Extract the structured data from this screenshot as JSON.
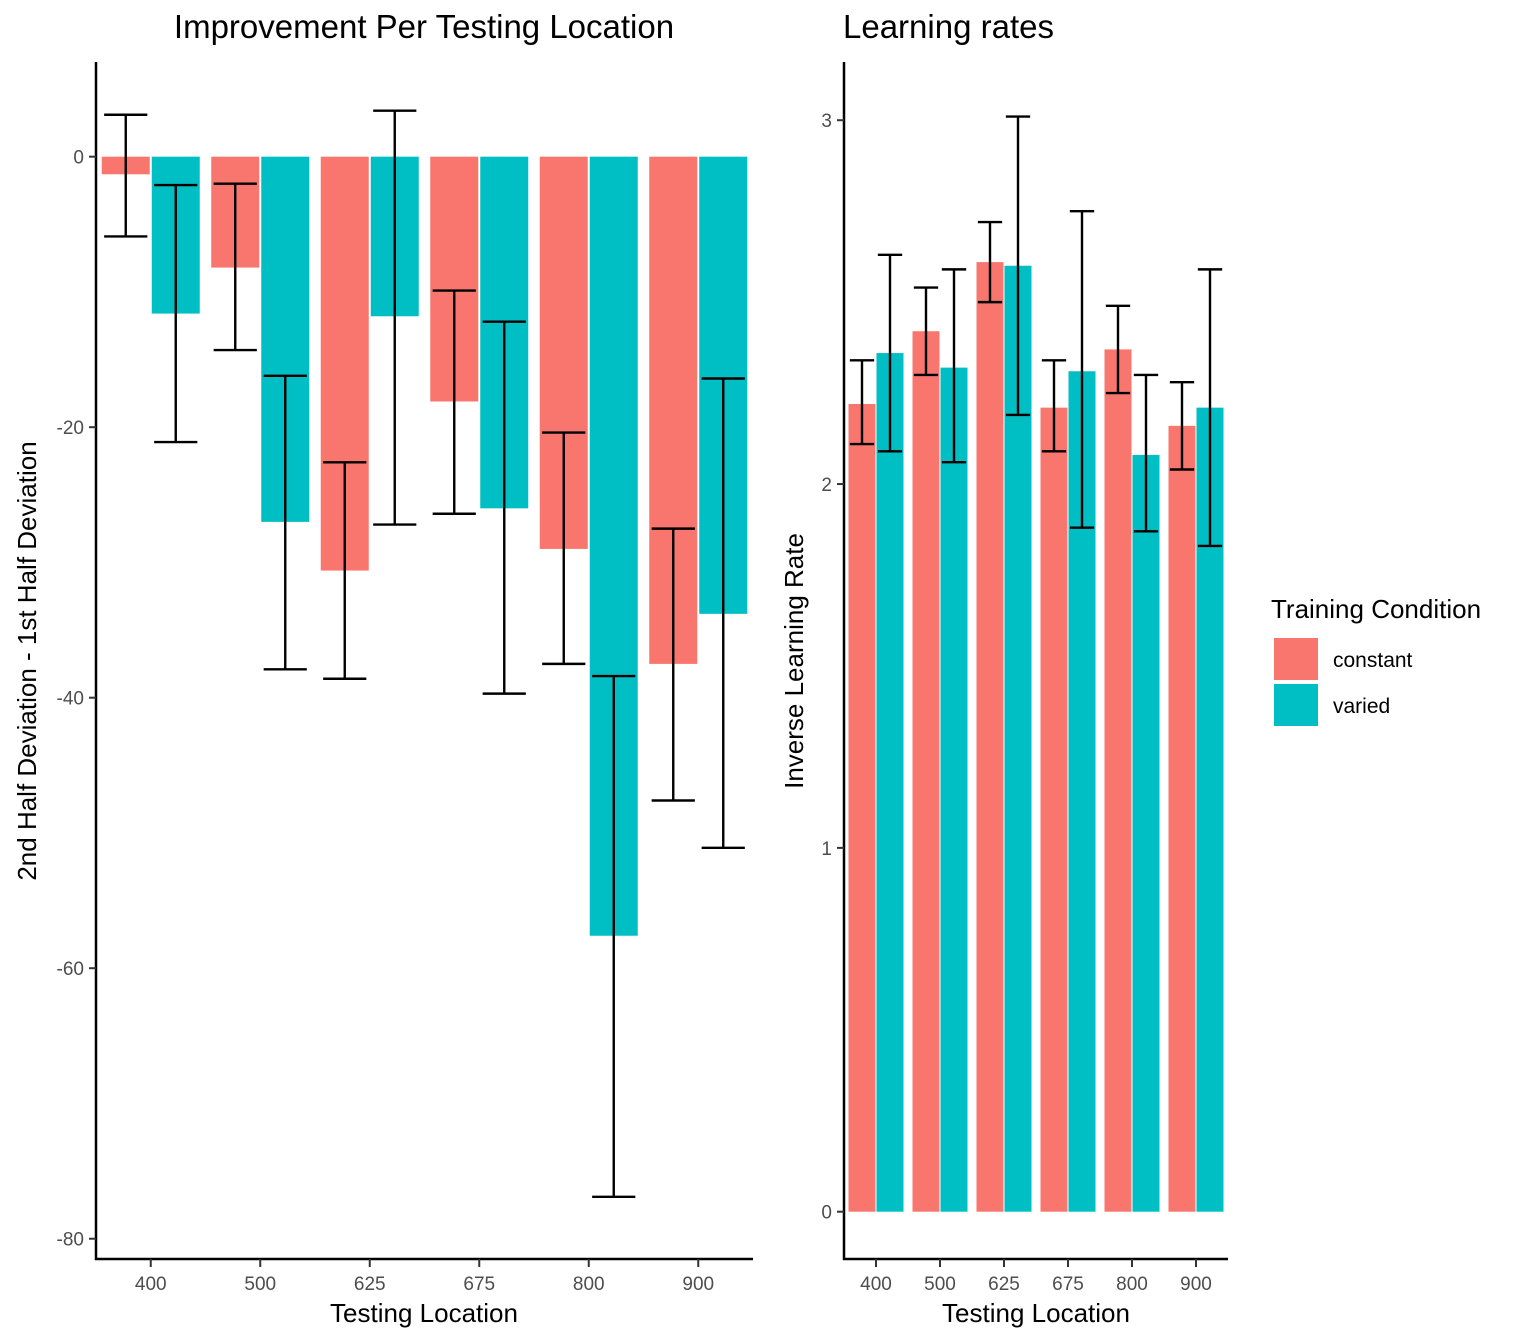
{
  "colors": {
    "constant": "#F8766D",
    "varied": "#00BFC4"
  },
  "legend": {
    "title": "Training Condition",
    "items": [
      {
        "label": "constant",
        "color": "#F8766D"
      },
      {
        "label": "varied",
        "color": "#00BFC4"
      }
    ]
  },
  "chart_data": [
    {
      "type": "bar",
      "title": "Improvement Per Testing Location",
      "xlabel": "Testing Location",
      "ylabel": "2nd Half Deviation - 1st Half Deviation",
      "categories": [
        "400",
        "500",
        "625",
        "675",
        "800",
        "900"
      ],
      "ylim": [
        -81.5,
        7
      ],
      "yticks": [
        0,
        -20,
        -40,
        -60,
        -80
      ],
      "grid": false,
      "series": [
        {
          "name": "constant",
          "values": [
            -1.3,
            -8.2,
            -30.6,
            -18.1,
            -29.0,
            -37.5
          ],
          "err_low": [
            -5.9,
            -14.3,
            -38.6,
            -26.4,
            -37.5,
            -47.6
          ],
          "err_high": [
            3.1,
            -2.0,
            -22.6,
            -9.9,
            -20.4,
            -27.5
          ]
        },
        {
          "name": "varied",
          "values": [
            -11.6,
            -27.0,
            -11.8,
            -26.0,
            -57.6,
            -33.8
          ],
          "err_low": [
            -21.1,
            -37.9,
            -27.2,
            -39.7,
            -76.9,
            -51.1
          ],
          "err_high": [
            -2.1,
            -16.2,
            3.4,
            -12.2,
            -38.4,
            -16.4
          ]
        }
      ]
    },
    {
      "type": "bar",
      "title": "Learning rates",
      "xlabel": "Testing Location",
      "ylabel": "Inverse Learning Rate",
      "categories": [
        "400",
        "500",
        "625",
        "675",
        "800",
        "900"
      ],
      "ylim": [
        -0.13,
        3.16
      ],
      "yticks": [
        0,
        1,
        2,
        3
      ],
      "grid": false,
      "series": [
        {
          "name": "constant",
          "values": [
            2.22,
            2.42,
            2.61,
            2.21,
            2.37,
            2.16
          ],
          "err_low": [
            2.11,
            2.3,
            2.5,
            2.09,
            2.25,
            2.04
          ],
          "err_high": [
            2.34,
            2.54,
            2.72,
            2.34,
            2.49,
            2.28
          ]
        },
        {
          "name": "varied",
          "values": [
            2.36,
            2.32,
            2.6,
            2.31,
            2.08,
            2.21
          ],
          "err_low": [
            2.09,
            2.06,
            2.19,
            1.88,
            1.87,
            1.83
          ],
          "err_high": [
            2.63,
            2.59,
            3.01,
            2.75,
            2.3,
            2.59
          ]
        }
      ]
    }
  ]
}
